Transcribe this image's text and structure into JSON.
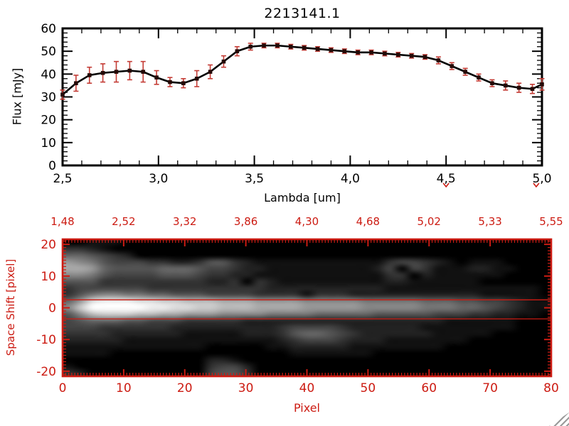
{
  "colors": {
    "line": "#000000",
    "marker": "#250a07",
    "error_bar": "#c43c35",
    "red_axis": "#cc1b12",
    "grip": "#9a9a9a"
  },
  "chart_data": [
    {
      "type": "line",
      "title": "2213141.1",
      "xlabel": "Lambda [um]",
      "ylabel": "Flux [mJy]",
      "xlim": [
        2.5,
        5.0
      ],
      "ylim": [
        0,
        60
      ],
      "legend": "none",
      "grid": false,
      "x_ticks": [
        {
          "v": 2.5,
          "label": "2,5"
        },
        {
          "v": 3.0,
          "label": "3,0"
        },
        {
          "v": 3.5,
          "label": "3,5"
        },
        {
          "v": 4.0,
          "label": "4,0"
        },
        {
          "v": 4.5,
          "label": "4,5"
        },
        {
          "v": 5.0,
          "label": "5,0"
        }
      ],
      "y_ticks": [
        {
          "v": 0,
          "label": "0"
        },
        {
          "v": 10,
          "label": "10"
        },
        {
          "v": 20,
          "label": "20"
        },
        {
          "v": 30,
          "label": "30"
        },
        {
          "v": 40,
          "label": "40"
        },
        {
          "v": 50,
          "label": "50"
        },
        {
          "v": 60,
          "label": "60"
        }
      ],
      "x": [
        2.5,
        2.57,
        2.64,
        2.71,
        2.78,
        2.85,
        2.92,
        2.99,
        3.06,
        3.13,
        3.2,
        3.27,
        3.34,
        3.41,
        3.48,
        3.55,
        3.62,
        3.69,
        3.76,
        3.83,
        3.9,
        3.97,
        4.04,
        4.11,
        4.18,
        4.25,
        4.32,
        4.39,
        4.46,
        4.53,
        4.6,
        4.67,
        4.74,
        4.81,
        4.88,
        4.95,
        5.0
      ],
      "y": [
        31,
        36,
        39.5,
        40.5,
        41,
        41.5,
        41,
        38.5,
        36.5,
        36,
        38,
        41,
        45.5,
        50,
        52,
        52.5,
        52.5,
        52,
        51.5,
        51,
        50.5,
        50,
        49.5,
        49.5,
        49,
        48.5,
        48,
        47.5,
        46,
        43.5,
        41,
        38.5,
        36,
        35,
        34,
        33.5,
        35.5
      ],
      "yerr": [
        2,
        3.5,
        3.5,
        4,
        4.5,
        4,
        4.5,
        3,
        2,
        2,
        3.5,
        3,
        2.5,
        2,
        1.5,
        1,
        1,
        1,
        1,
        1,
        1,
        1,
        1,
        1,
        1,
        1,
        1,
        1,
        1.5,
        1.5,
        1.5,
        1.5,
        1.5,
        2,
        2,
        2,
        2.5
      ],
      "red_caret_lambda": [
        4.5,
        4.97
      ]
    },
    {
      "type": "heatmap",
      "xlabel": "Pixel",
      "ylabel": "Space Shift [pixel]",
      "xlim": [
        0,
        80
      ],
      "ylim": [
        -21.6,
        21.6
      ],
      "top_axis_ticks": [
        {
          "p": 0,
          "label": "1,48"
        },
        {
          "p": 10,
          "label": "2,52"
        },
        {
          "p": 20,
          "label": "3,32"
        },
        {
          "p": 30,
          "label": "3,86"
        },
        {
          "p": 40,
          "label": "4,30"
        },
        {
          "p": 50,
          "label": "4,68"
        },
        {
          "p": 60,
          "label": "5,02"
        },
        {
          "p": 70,
          "label": "5,33"
        },
        {
          "p": 80,
          "label": "5,55"
        }
      ],
      "x_ticks": [
        {
          "v": 0,
          "label": "0"
        },
        {
          "v": 10,
          "label": "10"
        },
        {
          "v": 20,
          "label": "20"
        },
        {
          "v": 30,
          "label": "30"
        },
        {
          "v": 40,
          "label": "40"
        },
        {
          "v": 50,
          "label": "50"
        },
        {
          "v": 60,
          "label": "60"
        },
        {
          "v": 70,
          "label": "70"
        },
        {
          "v": 80,
          "label": "80"
        }
      ],
      "y_ticks": [
        {
          "v": 20,
          "label": "20"
        },
        {
          "v": 10,
          "label": "10"
        },
        {
          "v": 0,
          "label": "0"
        },
        {
          "v": -10,
          "label": "-10"
        },
        {
          "v": -20,
          "label": "-20"
        }
      ],
      "aperture_lines_s": [
        2.5,
        -3.5
      ],
      "value_encoding": "hex digit 0-f per cell, 0=black f=white, rows top (s=+20) to bottom (s=-20), cols pixel 0 to 80",
      "row_s_range": [
        20,
        -20
      ],
      "col_p_range": [
        0,
        80
      ],
      "rows": [
        "00111000000000000000000000000000000000000",
        "33210000000000000000000000000000000000000",
        "66543200000000000000000000000000000000000",
        "98754443322355321111111111134432101110000",
        "aa965555666544322111111111240431112211000",
        "88754444555433221111111111133021111110000",
        "55533333333322303211111111122111111000000",
        "34444443333333333222222222211111111111110",
        "35788776655544443333133322222222222111110",
        "69deeeddccbbbaaa9999888887777766655443211",
        "8cfffffeeddccbbbaaaa999998888877766543211",
        "58bcccbbaa9998888777766666555554443322110",
        "45666554443333322222222222222222111111000",
        "44433333322222222234444322222211111111000",
        "33332222221111122235665432222221111100000",
        "22222111111111111123444322211111110000000",
        "11111111111100000112222211111111000000000",
        "11110000000000000001111111000000000000000",
        "00000000000022100000000000000000000000000",
        "10000000000034420000000000000000000000000",
        "32000000000045530000000000000000000000000"
      ]
    }
  ]
}
